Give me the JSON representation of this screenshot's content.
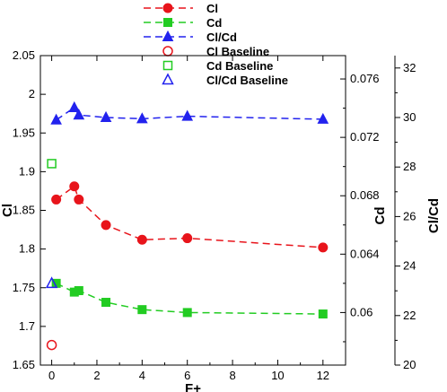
{
  "chart_data": {
    "type": "line",
    "xlabel": "F+",
    "x_ticks": [
      "0",
      "2",
      "4",
      "6",
      "8",
      "10",
      "12"
    ],
    "xlim": [
      -0.5,
      13
    ],
    "axes": {
      "left": {
        "label": "Cl",
        "range": [
          1.65,
          2.05
        ],
        "ticks": [
          "1.65",
          "1.7",
          "1.75",
          "1.8",
          "1.85",
          "1.9",
          "1.95",
          "2",
          "2.05"
        ]
      },
      "right1": {
        "label": "Cd",
        "range": [
          0.0564,
          0.0776
        ],
        "ticks": [
          "0.06",
          "0.064",
          "0.068",
          "0.072",
          "0.076"
        ]
      },
      "right2": {
        "label": "Cl/Cd",
        "range": [
          20,
          32.5
        ],
        "ticks": [
          "20",
          "22",
          "24",
          "26",
          "28",
          "30",
          "32"
        ]
      }
    },
    "series": [
      {
        "name": "Cl",
        "axis": "left",
        "color": "#e8141b",
        "marker": "circle-filled",
        "dashed": true,
        "x": [
          0.2,
          1.0,
          1.2,
          2.4,
          4.0,
          6.0,
          12.0
        ],
        "y": [
          1.864,
          1.881,
          1.864,
          1.831,
          1.812,
          1.814,
          1.802
        ]
      },
      {
        "name": "Cd",
        "axis": "right1",
        "color": "#22cc22",
        "marker": "square-filled",
        "dashed": true,
        "x": [
          0.2,
          1.0,
          1.2,
          2.4,
          4.0,
          6.0,
          12.0
        ],
        "y": [
          0.062,
          0.0614,
          0.0615,
          0.0607,
          0.0602,
          0.06,
          0.0599
        ]
      },
      {
        "name": "Cl/Cd",
        "axis": "right2",
        "color": "#2222ee",
        "marker": "triangle-filled",
        "dashed": true,
        "x": [
          0.2,
          1.0,
          1.2,
          2.4,
          4.0,
          6.0,
          12.0
        ],
        "y": [
          29.9,
          30.4,
          30.1,
          30.0,
          29.95,
          30.05,
          29.93
        ]
      },
      {
        "name": "Cl Baseline",
        "axis": "left",
        "color": "#e8141b",
        "marker": "circle-open",
        "x": [
          0.0
        ],
        "y": [
          1.676
        ]
      },
      {
        "name": "Cd Baseline",
        "axis": "right1",
        "color": "#22cc22",
        "marker": "square-open",
        "x": [
          0.0
        ],
        "y": [
          0.0702
        ]
      },
      {
        "name": "Cl/Cd Baseline",
        "axis": "right2",
        "color": "#2222ee",
        "marker": "triangle-open",
        "x": [
          0.0
        ],
        "y": [
          23.3
        ]
      }
    ],
    "legend": {
      "position": "top-center",
      "entries": [
        "Cl",
        "Cd",
        "Cl/Cd",
        "Cl Baseline",
        "Cd Baseline",
        "Cl/Cd Baseline"
      ]
    },
    "grid": false
  }
}
